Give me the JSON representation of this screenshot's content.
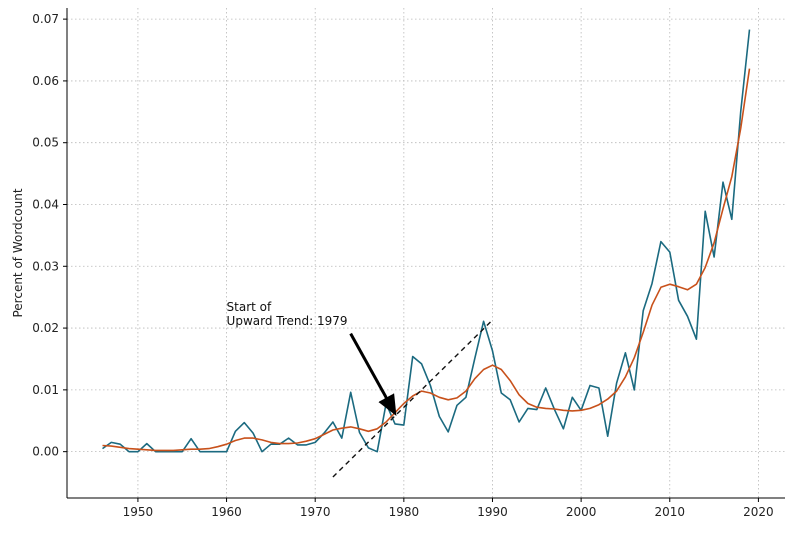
{
  "chart_data": {
    "type": "line",
    "title": "",
    "xlabel": "",
    "ylabel": "Percent of Wordcount",
    "xlim": [
      1942,
      2023
    ],
    "ylim": [
      -0.0075,
      0.0718
    ],
    "x_ticks": [
      1950,
      1960,
      1970,
      1980,
      1990,
      2000,
      2010,
      2020
    ],
    "y_ticks": [
      0.0,
      0.01,
      0.02,
      0.03,
      0.04,
      0.05,
      0.06,
      0.07
    ],
    "y_tick_labels": [
      "0.00",
      "0.01",
      "0.02",
      "0.03",
      "0.04",
      "0.05",
      "0.06",
      "0.07"
    ],
    "grid": true,
    "legend": "none",
    "colors": {
      "raw": "#1b6a80",
      "smoothed": "#c8511b",
      "trend": "#111111",
      "grid": "#b8b8b8"
    },
    "series": [
      {
        "key": "raw",
        "x": [
          1946,
          1947,
          1948,
          1949,
          1950,
          1951,
          1952,
          1953,
          1954,
          1955,
          1956,
          1957,
          1958,
          1959,
          1960,
          1961,
          1962,
          1963,
          1964,
          1965,
          1966,
          1967,
          1968,
          1969,
          1970,
          1971,
          1972,
          1973,
          1974,
          1975,
          1976,
          1977,
          1978,
          1979,
          1980,
          1981,
          1982,
          1983,
          1984,
          1985,
          1986,
          1987,
          1988,
          1989,
          1990,
          1991,
          1992,
          1993,
          1994,
          1995,
          1996,
          1997,
          1998,
          1999,
          2000,
          2001,
          2002,
          2003,
          2004,
          2005,
          2006,
          2007,
          2008,
          2009,
          2010,
          2011,
          2012,
          2013,
          2014,
          2015,
          2016,
          2017,
          2018,
          2019
        ],
        "y": [
          0.0005,
          0.0015,
          0.0012,
          0.0,
          0.0,
          0.0013,
          0.0,
          0.0,
          0.0,
          0.0,
          0.0021,
          0.0,
          0.0,
          0.0,
          0.0,
          0.0033,
          0.0047,
          0.003,
          0.0,
          0.0012,
          0.0012,
          0.0022,
          0.0011,
          0.0011,
          0.0015,
          0.003,
          0.0048,
          0.0022,
          0.0096,
          0.0031,
          0.0006,
          0.0,
          0.0078,
          0.0045,
          0.0043,
          0.0154,
          0.0142,
          0.0107,
          0.0057,
          0.0032,
          0.0075,
          0.0088,
          0.0151,
          0.0211,
          0.0163,
          0.0095,
          0.0084,
          0.0048,
          0.007,
          0.0068,
          0.0103,
          0.0068,
          0.0037,
          0.0088,
          0.0067,
          0.0107,
          0.0103,
          0.0025,
          0.0111,
          0.016,
          0.01,
          0.0228,
          0.0272,
          0.034,
          0.0323,
          0.0245,
          0.0219,
          0.0182,
          0.0389,
          0.0315,
          0.0436,
          0.0376,
          0.055,
          0.0683
        ]
      },
      {
        "key": "smoothed",
        "x": [
          1946,
          1947,
          1948,
          1949,
          1950,
          1951,
          1952,
          1953,
          1954,
          1955,
          1956,
          1957,
          1958,
          1959,
          1960,
          1961,
          1962,
          1963,
          1964,
          1965,
          1966,
          1967,
          1968,
          1969,
          1970,
          1971,
          1972,
          1973,
          1974,
          1975,
          1976,
          1977,
          1978,
          1979,
          1980,
          1981,
          1982,
          1983,
          1984,
          1985,
          1986,
          1987,
          1988,
          1989,
          1990,
          1991,
          1992,
          1993,
          1994,
          1995,
          1996,
          1997,
          1998,
          1999,
          2000,
          2001,
          2002,
          2003,
          2004,
          2005,
          2006,
          2007,
          2008,
          2009,
          2010,
          2011,
          2012,
          2013,
          2014,
          2015,
          2016,
          2017,
          2018,
          2019
        ],
        "y": [
          0.001,
          0.0009,
          0.0007,
          0.0005,
          0.0004,
          0.0003,
          0.0002,
          0.0002,
          0.0002,
          0.0003,
          0.0004,
          0.0004,
          0.0005,
          0.0008,
          0.0012,
          0.0018,
          0.0022,
          0.0022,
          0.0019,
          0.0015,
          0.0013,
          0.0013,
          0.0014,
          0.0017,
          0.0021,
          0.0028,
          0.0035,
          0.0038,
          0.004,
          0.0037,
          0.0033,
          0.0037,
          0.0048,
          0.0063,
          0.0078,
          0.009,
          0.0098,
          0.0095,
          0.0088,
          0.0084,
          0.0087,
          0.0098,
          0.0118,
          0.0133,
          0.014,
          0.0133,
          0.0115,
          0.0092,
          0.0078,
          0.0072,
          0.007,
          0.0069,
          0.0067,
          0.0066,
          0.0067,
          0.007,
          0.0076,
          0.0085,
          0.0098,
          0.0121,
          0.0152,
          0.0193,
          0.0237,
          0.0266,
          0.0271,
          0.0267,
          0.0262,
          0.0271,
          0.0298,
          0.0338,
          0.0393,
          0.0445,
          0.0523,
          0.062
        ]
      }
    ],
    "trend_line": {
      "x": [
        1972,
        1990
      ],
      "y": [
        -0.0041,
        0.0213
      ]
    },
    "annotation": {
      "lines": [
        "Start of",
        "Upward Trend: 1979"
      ],
      "text_anchor": {
        "x": 1960,
        "y": 0.0205
      },
      "arrow_tail": {
        "x": 1974,
        "y": 0.0191
      },
      "arrow_head": {
        "x": 1979,
        "y": 0.0062
      }
    }
  }
}
